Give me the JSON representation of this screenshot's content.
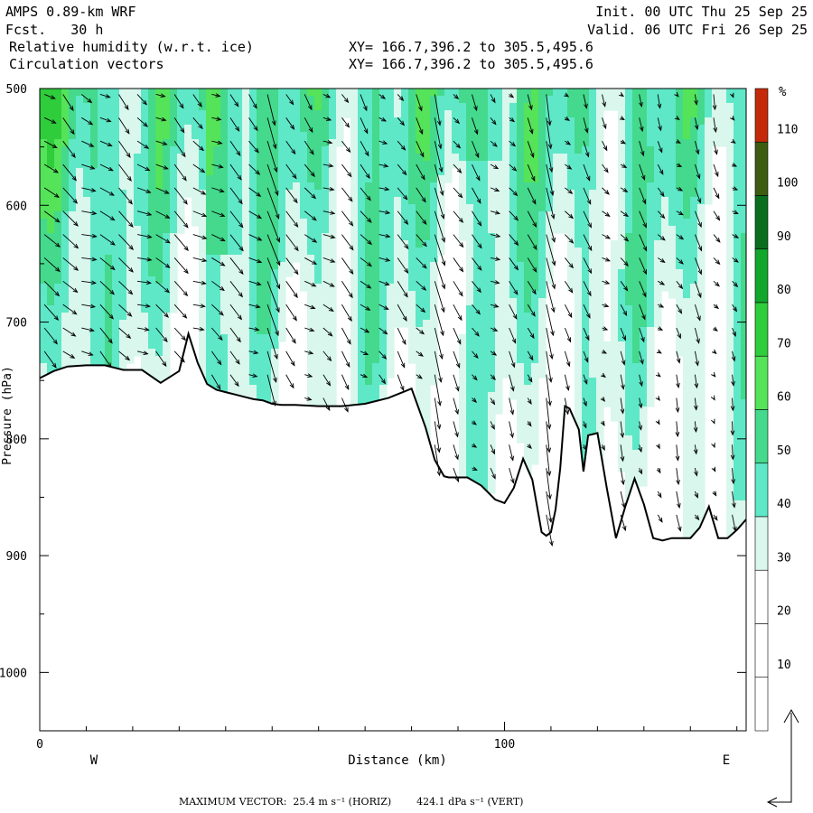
{
  "header": {
    "model": "AMPS 0.89-km WRF",
    "fcst": "Fcst.   30 h",
    "field1": "Relative humidity (w.r.t. ice)",
    "field2": "Circulation vectors",
    "init": "Init. 00 UTC Thu 25 Sep 25",
    "valid": "Valid. 06 UTC Fri 26 Sep 25",
    "xy1": "XY= 166.7,396.2 to 305.5,495.6",
    "xy2": "XY= 166.7,396.2 to 305.5,495.6"
  },
  "footer": {
    "max_vector": "MAXIMUM VECTOR:  25.4 m s⁻¹ (HORIZ)        424.1 dPa s⁻¹ (VERT)"
  },
  "colorbar": {
    "unit": "%",
    "ticks": [
      "110",
      "100",
      "90",
      "80",
      "70",
      "60",
      "50",
      "40",
      "30",
      "20",
      "10"
    ],
    "levels": [
      10,
      20,
      30,
      40,
      50,
      60,
      70,
      80,
      90,
      100,
      110
    ],
    "colors": [
      "#ffffff",
      "#ffffff",
      "#ffffff",
      "#d9f7ec",
      "#5ee8c8",
      "#44d98c",
      "#55e35a",
      "#2fcc3c",
      "#12a62a",
      "#0a6e1e",
      "#3d5c10",
      "#c42a0a"
    ]
  },
  "chart_data": {
    "type": "heatmap",
    "title": "Relative humidity (w.r.t. ice)",
    "subtitle": "Circulation vectors",
    "xlabel": "Distance (km)",
    "ylabel": "Pressure (hPa)",
    "x_ticks": [
      "0",
      "100"
    ],
    "y_ticks": [
      "500",
      "600",
      "700",
      "800",
      "900",
      "1000"
    ],
    "xlim": [
      0,
      152
    ],
    "ylim": [
      1050,
      500
    ],
    "left_label": "W",
    "right_label": "E",
    "terrain_km": [
      0,
      3,
      6,
      10,
      14,
      18,
      22,
      26,
      30,
      32,
      34,
      36,
      38,
      40,
      42,
      44,
      46,
      48,
      50,
      52,
      55,
      60,
      65,
      70,
      75,
      80,
      83,
      85,
      87,
      88,
      90,
      92,
      95,
      98,
      100,
      102,
      104,
      106,
      108,
      109,
      110,
      111,
      112,
      113,
      114,
      115,
      116,
      117,
      118,
      120,
      122,
      124,
      126,
      128,
      130,
      132,
      134,
      136,
      138,
      140,
      142,
      144,
      146,
      148,
      150,
      152
    ],
    "terrain_hpa": [
      748,
      742,
      738,
      737,
      737,
      741,
      741,
      752,
      742,
      710,
      735,
      753,
      758,
      760,
      762,
      764,
      766,
      767,
      770,
      771,
      771,
      772,
      772,
      770,
      765,
      757,
      790,
      818,
      832,
      833,
      833,
      833,
      840,
      852,
      855,
      842,
      817,
      835,
      880,
      883,
      880,
      860,
      825,
      772,
      774,
      783,
      792,
      828,
      797,
      795,
      842,
      885,
      858,
      834,
      856,
      885,
      887,
      885,
      885,
      885,
      876,
      858,
      885,
      885,
      878,
      869
    ],
    "vector_max_horiz": "25.4 m s-1",
    "vector_max_vert": "424.1 dPa s-1"
  }
}
